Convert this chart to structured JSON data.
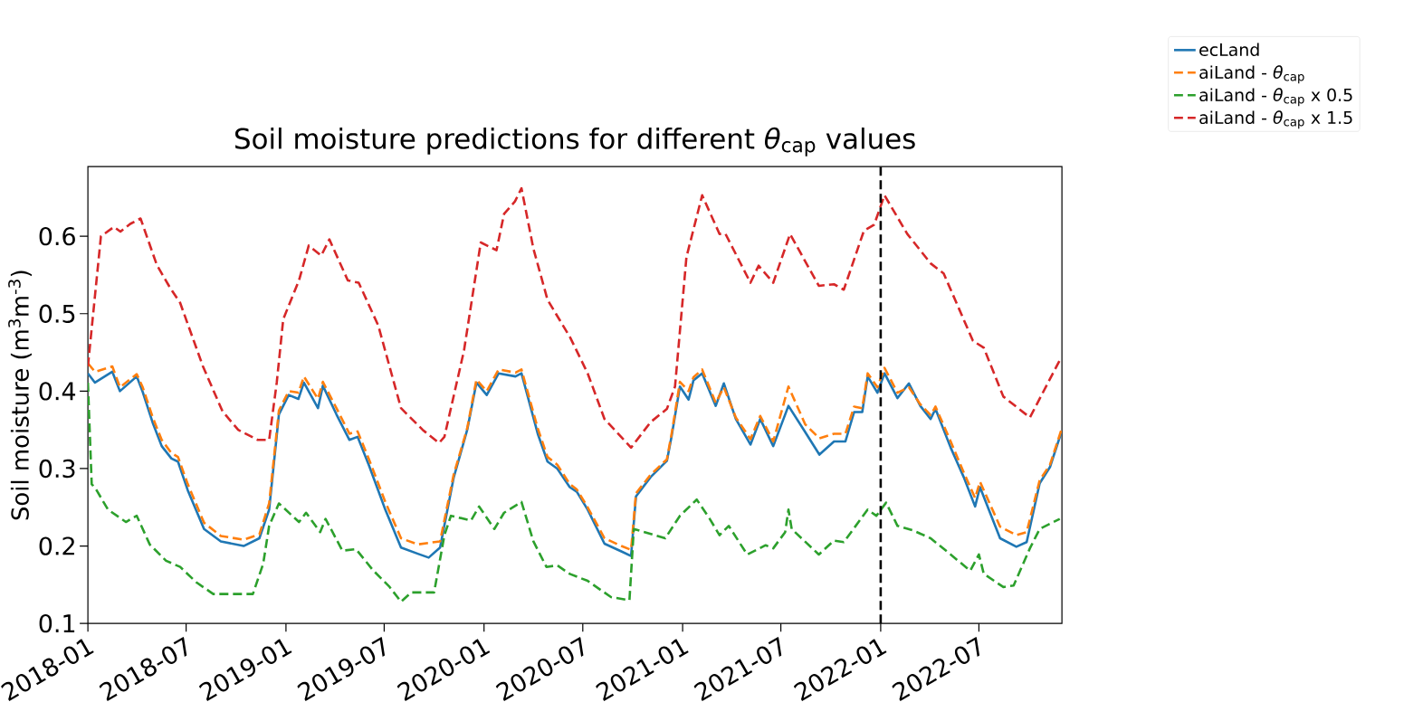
{
  "chart_data": {
    "type": "line",
    "title": "Soil moisture predictions for different *θ*$_{cap}$ values",
    "ylabel": "Soil moisture (m$^{3}$m$^{-3}$)",
    "xlim": [
      "2018-01-01",
      "2022-12-01"
    ],
    "ylim": [
      0.1,
      0.69
    ],
    "xticks": [
      {
        "value": "2018-01-01",
        "label": "2018-01"
      },
      {
        "value": "2018-07-01",
        "label": "2018-07"
      },
      {
        "value": "2019-01-01",
        "label": "2019-01"
      },
      {
        "value": "2019-07-01",
        "label": "2019-07"
      },
      {
        "value": "2020-01-01",
        "label": "2020-01"
      },
      {
        "value": "2020-07-01",
        "label": "2020-07"
      },
      {
        "value": "2021-01-01",
        "label": "2021-01"
      },
      {
        "value": "2021-07-01",
        "label": "2021-07"
      },
      {
        "value": "2022-01-01",
        "label": "2022-01"
      },
      {
        "value": "2022-07-01",
        "label": "2022-07"
      }
    ],
    "yticks": [
      0.1,
      0.2,
      0.3,
      0.4,
      0.5,
      0.6
    ],
    "legend": "top right",
    "ref_lines": [
      {
        "axis": "x",
        "value": "2022-01-01",
        "color": "#000000",
        "line_style": "dashed"
      }
    ],
    "x": [
      "2018-01-01",
      "2018-01-14",
      "2018-02-15",
      "2018-03-01",
      "2018-04-01",
      "2018-04-12",
      "2018-05-01",
      "2018-05-17",
      "2018-06-04",
      "2018-06-16",
      "2018-07-04",
      "2018-08-03",
      "2018-09-03",
      "2018-10-15",
      "2018-11-13",
      "2018-12-01",
      "2018-12-19",
      "2019-01-06",
      "2019-01-24",
      "2019-02-03",
      "2019-03-01",
      "2019-03-10",
      "2019-04-04",
      "2019-04-28",
      "2019-05-13",
      "2019-06-03",
      "2019-07-03",
      "2019-08-01",
      "2019-09-01",
      "2019-09-21",
      "2019-10-12",
      "2019-11-06",
      "2019-12-01",
      "2019-12-18",
      "2020-01-06",
      "2020-01-28",
      "2020-02-28",
      "2020-03-10",
      "2020-04-09",
      "2020-04-27",
      "2020-05-15",
      "2020-06-07",
      "2020-06-20",
      "2020-07-10",
      "2020-08-10",
      "2020-09-10",
      "2020-09-28",
      "2020-10-07",
      "2020-11-03",
      "2020-12-03",
      "2020-12-12",
      "2020-12-27",
      "2021-01-12",
      "2021-01-21",
      "2021-02-06",
      "2021-03-03",
      "2021-03-18",
      "2021-04-09",
      "2021-05-06",
      "2021-05-24",
      "2021-06-17",
      "2021-07-15",
      "2021-08-15",
      "2021-09-10",
      "2021-10-07",
      "2021-10-28",
      "2021-11-13",
      "2021-11-28",
      "2021-12-08",
      "2021-12-26",
      "2022-01-08",
      "2022-02-01",
      "2022-02-22",
      "2022-03-15",
      "2022-04-03",
      "2022-04-12",
      "2022-05-10",
      "2022-06-03",
      "2022-06-24",
      "2022-07-03",
      "2022-08-09",
      "2022-09-08",
      "2022-09-27",
      "2022-10-21",
      "2022-11-09",
      "2022-11-30"
    ],
    "series": [
      {
        "name": "ecLand",
        "color": "#1f77b4",
        "line_style": "solid",
        "values": [
          0.423,
          0.411,
          0.425,
          0.4,
          0.419,
          0.399,
          0.358,
          0.329,
          0.313,
          0.309,
          0.272,
          0.222,
          0.206,
          0.2,
          0.21,
          0.247,
          0.37,
          0.395,
          0.39,
          0.411,
          0.378,
          0.407,
          0.37,
          0.337,
          0.341,
          0.304,
          0.247,
          0.198,
          0.19,
          0.185,
          0.198,
          0.288,
          0.35,
          0.411,
          0.395,
          0.423,
          0.419,
          0.423,
          0.345,
          0.309,
          0.3,
          0.276,
          0.27,
          0.247,
          0.203,
          0.193,
          0.187,
          0.264,
          0.289,
          0.31,
          0.343,
          0.406,
          0.389,
          0.414,
          0.423,
          0.381,
          0.41,
          0.364,
          0.331,
          0.364,
          0.329,
          0.381,
          0.347,
          0.318,
          0.335,
          0.335,
          0.373,
          0.373,
          0.419,
          0.398,
          0.423,
          0.391,
          0.41,
          0.381,
          0.364,
          0.377,
          0.327,
          0.289,
          0.251,
          0.276,
          0.21,
          0.199,
          0.205,
          0.281,
          0.302,
          0.347
        ]
      },
      {
        "name": "aiLand - *θ*$_{cap}$",
        "color": "#ff7f0e",
        "line_style": "dashed",
        "values": [
          0.436,
          0.425,
          0.432,
          0.405,
          0.422,
          0.405,
          0.365,
          0.337,
          0.32,
          0.315,
          0.28,
          0.23,
          0.213,
          0.208,
          0.215,
          0.255,
          0.375,
          0.4,
          0.398,
          0.419,
          0.39,
          0.412,
          0.378,
          0.345,
          0.348,
          0.312,
          0.257,
          0.21,
          0.202,
          0.204,
          0.206,
          0.292,
          0.352,
          0.415,
          0.4,
          0.428,
          0.424,
          0.428,
          0.352,
          0.315,
          0.305,
          0.28,
          0.273,
          0.25,
          0.21,
          0.2,
          0.195,
          0.268,
          0.292,
          0.312,
          0.346,
          0.412,
          0.4,
          0.418,
          0.428,
          0.385,
          0.405,
          0.366,
          0.338,
          0.368,
          0.335,
          0.406,
          0.357,
          0.339,
          0.345,
          0.345,
          0.38,
          0.378,
          0.423,
          0.405,
          0.43,
          0.398,
          0.405,
          0.383,
          0.369,
          0.38,
          0.335,
          0.295,
          0.262,
          0.283,
          0.225,
          0.214,
          0.218,
          0.285,
          0.305,
          0.35
        ]
      },
      {
        "name": "aiLand - *θ*$_{cap}$ x 0.5",
        "color": "#2ca02c",
        "line_style": "dashed",
        "x": [
          "2018-01-01",
          "2018-01-08",
          "2018-01-17",
          "2018-02-07",
          "2018-03-12",
          "2018-04-01",
          "2018-04-25",
          "2018-05-25",
          "2018-06-20",
          "2018-07-20",
          "2018-08-20",
          "2018-11-01",
          "2018-11-20",
          "2018-12-01",
          "2018-12-19",
          "2019-01-25",
          "2019-02-07",
          "2019-03-05",
          "2019-03-15",
          "2019-04-15",
          "2019-05-10",
          "2019-06-10",
          "2019-07-10",
          "2019-08-01",
          "2019-08-20",
          "2019-10-01",
          "2019-10-20",
          "2019-11-01",
          "2019-12-08",
          "2019-12-23",
          "2020-01-20",
          "2020-02-07",
          "2020-03-10",
          "2020-04-01",
          "2020-04-25",
          "2020-05-15",
          "2020-06-07",
          "2020-07-10",
          "2020-08-22",
          "2020-09-25",
          "2020-10-03",
          "2020-11-30",
          "2020-12-27",
          "2021-01-27",
          "2021-02-20",
          "2021-03-10",
          "2021-03-27",
          "2021-04-30",
          "2021-06-03",
          "2021-06-17",
          "2021-07-09",
          "2021-07-15",
          "2021-07-21",
          "2021-09-09",
          "2021-10-07",
          "2021-10-25",
          "2021-12-08",
          "2021-12-24",
          "2022-01-11",
          "2022-02-01",
          "2022-03-02",
          "2022-04-03",
          "2022-05-10",
          "2022-06-15",
          "2022-07-01",
          "2022-07-10",
          "2022-08-15",
          "2022-09-03",
          "2022-10-03",
          "2022-10-21",
          "2022-11-27"
        ],
        "values": [
          0.411,
          0.28,
          0.272,
          0.247,
          0.231,
          0.239,
          0.202,
          0.181,
          0.173,
          0.153,
          0.138,
          0.138,
          0.177,
          0.226,
          0.255,
          0.231,
          0.243,
          0.218,
          0.235,
          0.194,
          0.196,
          0.169,
          0.148,
          0.128,
          0.14,
          0.14,
          0.214,
          0.239,
          0.233,
          0.251,
          0.222,
          0.243,
          0.257,
          0.206,
          0.173,
          0.175,
          0.164,
          0.155,
          0.134,
          0.13,
          0.222,
          0.21,
          0.239,
          0.26,
          0.235,
          0.214,
          0.226,
          0.189,
          0.201,
          0.197,
          0.218,
          0.247,
          0.222,
          0.189,
          0.207,
          0.205,
          0.247,
          0.239,
          0.256,
          0.226,
          0.22,
          0.21,
          0.189,
          0.168,
          0.189,
          0.164,
          0.147,
          0.149,
          0.197,
          0.222,
          0.235
        ]
      },
      {
        "name": "aiLand - *θ*$_{cap}$ x 1.5",
        "color": "#d62728",
        "line_style": "dashed",
        "x": [
          "2018-01-01",
          "2018-01-25",
          "2018-02-18",
          "2018-03-02",
          "2018-03-20",
          "2018-04-08",
          "2018-05-08",
          "2018-06-01",
          "2018-06-20",
          "2018-08-01",
          "2018-09-06",
          "2018-10-05",
          "2018-11-10",
          "2018-12-01",
          "2018-12-15",
          "2018-12-27",
          "2019-01-25",
          "2019-02-12",
          "2019-03-07",
          "2019-03-22",
          "2019-04-25",
          "2019-05-15",
          "2019-06-20",
          "2019-08-01",
          "2019-09-10",
          "2019-10-10",
          "2019-10-20",
          "2019-11-25",
          "2019-12-26",
          "2020-01-24",
          "2020-02-07",
          "2020-02-27",
          "2020-03-10",
          "2020-04-01",
          "2020-04-27",
          "2020-06-08",
          "2020-07-10",
          "2020-08-10",
          "2020-09-28",
          "2020-11-03",
          "2020-12-03",
          "2020-12-18",
          "2021-01-08",
          "2021-02-06",
          "2021-03-10",
          "2021-03-21",
          "2021-05-06",
          "2021-05-21",
          "2021-06-17",
          "2021-07-18",
          "2021-09-09",
          "2021-10-07",
          "2021-10-25",
          "2021-12-01",
          "2021-12-20",
          "2022-01-08",
          "2022-02-19",
          "2022-04-03",
          "2022-04-27",
          "2022-06-20",
          "2022-07-10",
          "2022-08-15",
          "2022-10-03",
          "2022-11-30"
        ],
        "values": [
          0.432,
          0.6,
          0.612,
          0.606,
          0.616,
          0.623,
          0.563,
          0.534,
          0.514,
          0.432,
          0.374,
          0.35,
          0.337,
          0.337,
          0.411,
          0.493,
          0.543,
          0.588,
          0.575,
          0.596,
          0.543,
          0.54,
          0.485,
          0.378,
          0.35,
          0.333,
          0.341,
          0.452,
          0.592,
          0.582,
          0.629,
          0.645,
          0.662,
          0.584,
          0.518,
          0.469,
          0.423,
          0.364,
          0.327,
          0.36,
          0.377,
          0.406,
          0.573,
          0.653,
          0.603,
          0.603,
          0.54,
          0.562,
          0.54,
          0.603,
          0.536,
          0.538,
          0.531,
          0.607,
          0.615,
          0.653,
          0.603,
          0.565,
          0.552,
          0.465,
          0.456,
          0.393,
          0.366,
          0.444
        ]
      }
    ]
  }
}
